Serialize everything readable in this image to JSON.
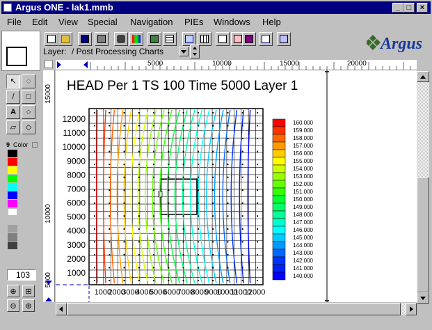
{
  "window": {
    "title": "Argus ONE - lak1.mmb",
    "min_label": "_",
    "max_label": "□",
    "close_label": "×"
  },
  "menu": [
    "File",
    "Edit",
    "View",
    "Special",
    "Navigation",
    "PIEs",
    "Windows",
    "Help"
  ],
  "toolbar": {
    "layer_label": "Layer:",
    "layer_value": "/ Post Processing Charts",
    "brand": "Argus"
  },
  "ruler_top": [
    "5000",
    "10000",
    "15000",
    "20000"
  ],
  "ruler_left": [
    "15000",
    "10000",
    "5000"
  ],
  "left_panel": {
    "color_label": "Color",
    "zoom_value": "103"
  },
  "colors": {
    "swatches": [
      "#000000",
      "#ff0000",
      "#ffff00",
      "#00ff00",
      "#00ffff",
      "#0000ff",
      "#ff00ff",
      "#ffffff",
      "#c0c0c0",
      "#a0a0a0",
      "#808080",
      "#404040"
    ]
  },
  "chart_data": {
    "type": "contour",
    "title": "HEAD Per 1 TS 100 Time 5000  Layer  1",
    "y_ticks": [
      "12000",
      "11000",
      "10000",
      "9000",
      "8000",
      "7000",
      "6000",
      "5000",
      "4000",
      "3000",
      "2000",
      "1000"
    ],
    "x_ticks": [
      "1000",
      "2000",
      "3000",
      "4000",
      "5000",
      "6000",
      "7000",
      "8000",
      "9000",
      "10000",
      "11000",
      "12000"
    ],
    "legend": [
      "160.000",
      "159.000",
      "158.000",
      "157.000",
      "156.000",
      "155.000",
      "154.000",
      "153.000",
      "152.000",
      "151.000",
      "150.000",
      "149.000",
      "148.000",
      "147.000",
      "146.000",
      "145.000",
      "144.000",
      "143.000",
      "142.000",
      "141.000",
      "140.000"
    ],
    "legend_colors": [
      "#ff0000",
      "#ff3300",
      "#ff6600",
      "#ff9900",
      "#ffcc00",
      "#ffff00",
      "#ccff00",
      "#99ff00",
      "#66ff00",
      "#33ff00",
      "#00ff33",
      "#00ff66",
      "#00ff99",
      "#00ffcc",
      "#00ffff",
      "#00ccff",
      "#0099ff",
      "#0066ff",
      "#0033ff",
      "#0022ee",
      "#0000ff"
    ]
  }
}
